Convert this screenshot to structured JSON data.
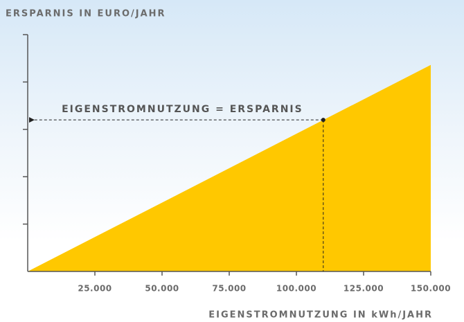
{
  "chart_data": {
    "type": "area",
    "ylabel": "ERSPARNIS IN EURO/JAHR",
    "xlabel": "EIGENSTROMNUTZUNG IN kWh/JAHR",
    "x": [
      0,
      150000
    ],
    "values": [
      0,
      4.36
    ],
    "color": "#ffc800",
    "xlim": [
      0,
      150000
    ],
    "xticks": [
      {
        "value": 25000,
        "label": "25.000"
      },
      {
        "value": 50000,
        "label": "50.000"
      },
      {
        "value": 75000,
        "label": "75.000"
      },
      {
        "value": 100000,
        "label": "100.000"
      },
      {
        "value": 125000,
        "label": "125.000"
      },
      {
        "value": 150000,
        "label": "150.000"
      }
    ],
    "ylim": [
      0,
      5
    ],
    "yticks": [
      1,
      2,
      3,
      4
    ],
    "annotation": {
      "text": "EIGENSTROMNUTZUNG = ERSPARNIS",
      "x": 110000,
      "y": 3.2
    }
  }
}
